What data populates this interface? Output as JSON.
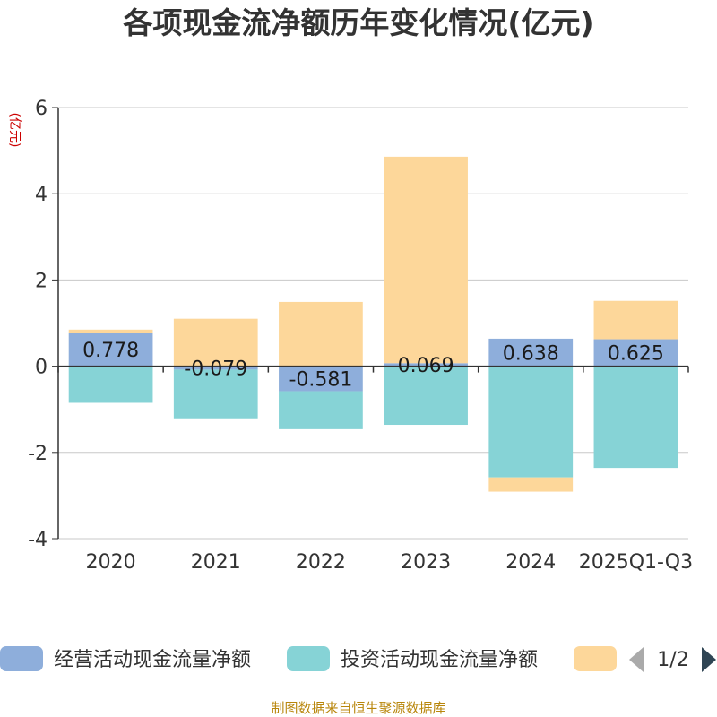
{
  "chart_data": {
    "type": "bar",
    "stacked": true,
    "title": "各项现金流净额历年变化情况(亿元)",
    "ylabel": "(亿元)",
    "ylim": [
      -4,
      6
    ],
    "yticks": [
      -4,
      -2,
      0,
      2,
      4,
      6
    ],
    "categories": [
      "2020",
      "2021",
      "2022",
      "2023",
      "2024",
      "2025Q1-Q3"
    ],
    "series": [
      {
        "name": "经营活动现金流量净额",
        "color": "#8eaedb",
        "values": [
          0.778,
          -0.079,
          -0.581,
          0.069,
          0.638,
          0.625
        ]
      },
      {
        "name": "投资活动现金流量净额",
        "color": "#86d3d6",
        "values": [
          -0.85,
          -1.13,
          -0.88,
          -1.36,
          -2.58,
          -2.36
        ]
      },
      {
        "name": "",
        "color": "#fdd79a",
        "values": [
          0.07,
          1.1,
          1.49,
          4.79,
          -0.33,
          0.89
        ]
      }
    ],
    "data_labels": [
      "0.778",
      "-0.079",
      "-0.581",
      "0.069",
      "0.638",
      "0.625"
    ],
    "legend": {
      "position": "bottom",
      "page": "1/2"
    },
    "grid": true
  },
  "source": "制图数据来自恒生聚源数据库"
}
